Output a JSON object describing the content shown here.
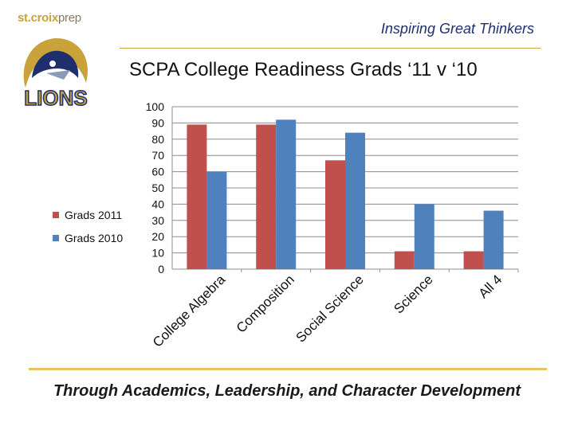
{
  "header": {
    "brand": "st.croix",
    "brand_suffix": "prep",
    "logo_text": "LIONS",
    "tagline": "Inspiring Great Thinkers"
  },
  "footer": {
    "text": "Through Academics, Leadership, and Character Development"
  },
  "colors": {
    "series_2011": "#c0504d",
    "series_2010": "#4f81bd",
    "gold": "#c9a23a",
    "navy": "#1f2f6e"
  },
  "chart_data": {
    "type": "bar",
    "title": "SCPA  College Readiness Grads ‘11 v  ‘10",
    "categories": [
      "College Algebra",
      "Composition",
      "Social Science",
      "Science",
      "All 4"
    ],
    "series": [
      {
        "name": "Grads 2011",
        "values": [
          89,
          89,
          67,
          11,
          11
        ]
      },
      {
        "name": "Grads 2010",
        "values": [
          60,
          92,
          84,
          40,
          36
        ]
      }
    ],
    "ylim": [
      0,
      100
    ],
    "yticks": [
      0,
      10,
      20,
      30,
      40,
      50,
      60,
      70,
      80,
      90,
      100
    ],
    "grid": true,
    "legend": "left"
  }
}
